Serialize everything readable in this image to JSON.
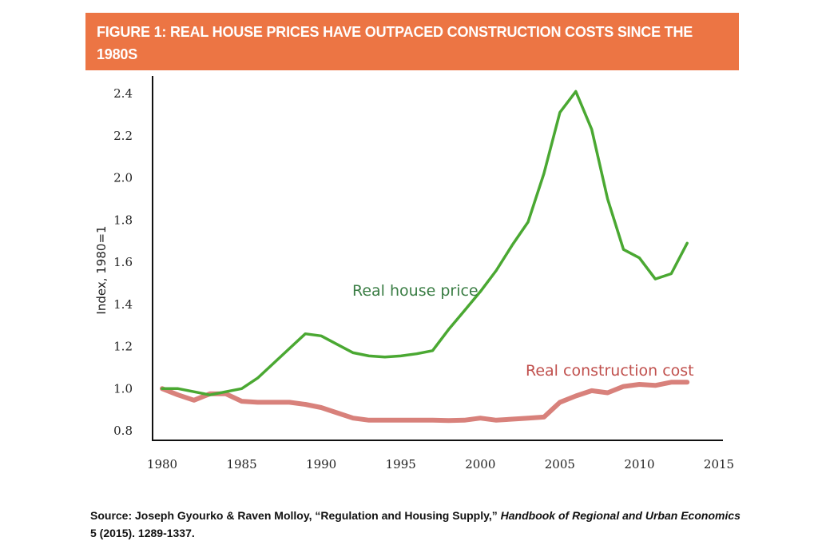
{
  "figure": {
    "title": "FIGURE 1: REAL HOUSE PRICES HAVE OUTPACED CONSTRUCTION COSTS SINCE THE 1980S",
    "banner_color": "#ec7544"
  },
  "source": {
    "prefix": "Source: Joseph Gyourko & Raven Molloy, “Regulation and Housing Supply,” ",
    "journal": "Handbook of Regional and Urban Economics",
    "suffix": " 5 (2015). 1289-1337."
  },
  "chart_data": {
    "type": "line",
    "title": "FIGURE 1: REAL HOUSE PRICES HAVE OUTPACED CONSTRUCTION COSTS SINCE THE 1980S",
    "xlabel": "",
    "ylabel": "Index, 1980=1",
    "xlim": [
      1980,
      2015
    ],
    "ylim": [
      0.8,
      2.4
    ],
    "xticks": [
      "1980",
      "1985",
      "1990",
      "1995",
      "2000",
      "2005",
      "2010",
      "2015"
    ],
    "yticks": [
      "0.8",
      "1.0",
      "1.2",
      "1.4",
      "1.6",
      "1.8",
      "2.0",
      "2.2",
      "2.4"
    ],
    "grid": false,
    "legend": "inline labels",
    "x": [
      1980,
      1981,
      1982,
      1983,
      1984,
      1985,
      1986,
      1987,
      1988,
      1989,
      1990,
      1991,
      1992,
      1993,
      1994,
      1995,
      1996,
      1997,
      1998,
      1999,
      2000,
      2001,
      2002,
      2003,
      2004,
      2005,
      2006,
      2007,
      2008,
      2009,
      2010,
      2011,
      2012,
      2013
    ],
    "series": [
      {
        "name": "Real house price",
        "color": "#4aa832",
        "label_color": "#3a7d44",
        "values": [
          1.0,
          1.0,
          0.985,
          0.97,
          0.985,
          1.0,
          1.05,
          1.12,
          1.19,
          1.26,
          1.25,
          1.21,
          1.17,
          1.155,
          1.15,
          1.155,
          1.165,
          1.18,
          1.28,
          1.37,
          1.46,
          1.56,
          1.68,
          1.79,
          2.02,
          2.31,
          2.41,
          2.23,
          1.9,
          1.66,
          1.62,
          1.52,
          1.545,
          1.69
        ]
      },
      {
        "name": "Real construction cost",
        "color": "#d67a74",
        "label_color": "#c0504d",
        "values": [
          1.0,
          0.97,
          0.945,
          0.975,
          0.975,
          0.94,
          0.935,
          0.935,
          0.935,
          0.925,
          0.91,
          0.885,
          0.86,
          0.85,
          0.85,
          0.85,
          0.85,
          0.85,
          0.848,
          0.85,
          0.86,
          0.85,
          0.855,
          0.86,
          0.865,
          0.935,
          0.965,
          0.99,
          0.98,
          1.01,
          1.02,
          1.015,
          1.03,
          1.03
        ]
      }
    ]
  }
}
